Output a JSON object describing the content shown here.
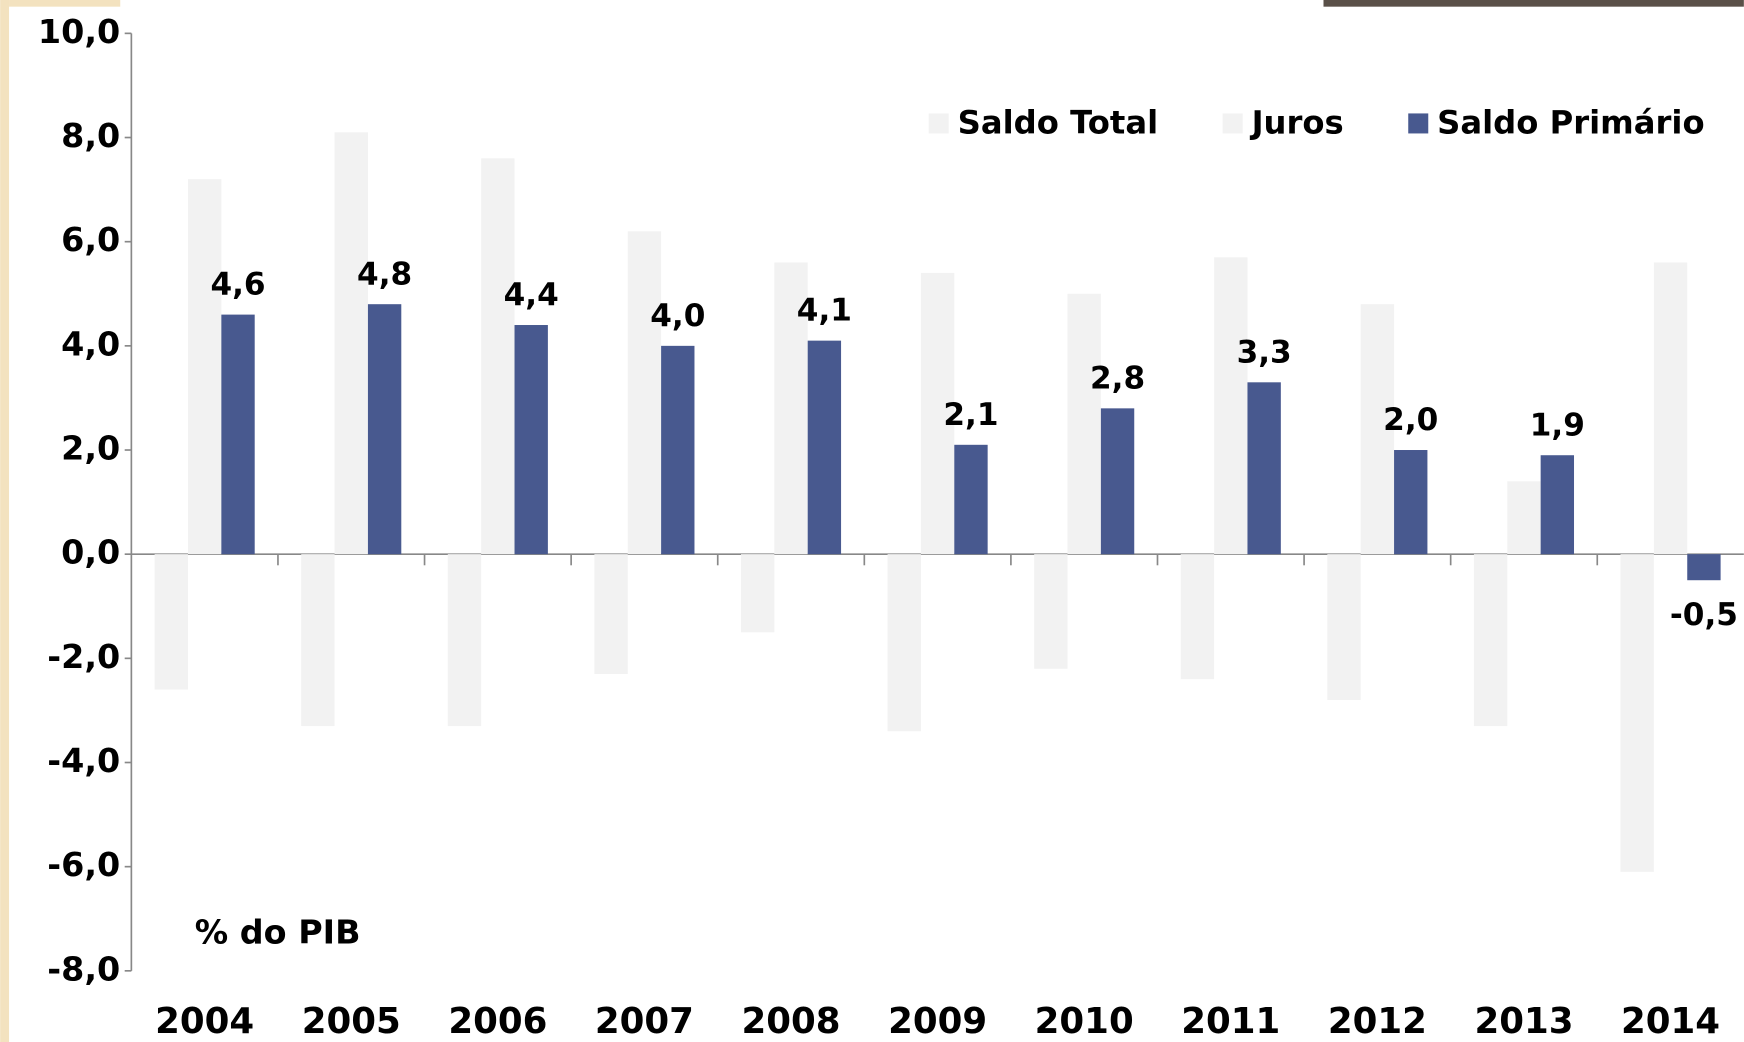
{
  "chart_data": {
    "type": "bar",
    "annotation": "% do PIB",
    "categories": [
      "2004",
      "2005",
      "2006",
      "2007",
      "2008",
      "2009",
      "2010",
      "2011",
      "2012",
      "2013",
      "2014"
    ],
    "series": [
      {
        "name": "Saldo Total",
        "color": "#f2f2f2",
        "values": [
          -2.6,
          -3.3,
          -3.3,
          -2.3,
          -1.5,
          -3.4,
          -2.2,
          -2.4,
          -2.8,
          -3.3,
          -6.1
        ]
      },
      {
        "name": "Juros",
        "color": "#f2f2f2",
        "values": [
          7.2,
          8.1,
          7.6,
          6.2,
          5.6,
          5.4,
          5.0,
          5.7,
          4.8,
          1.4,
          5.6
        ]
      },
      {
        "name": "Saldo Primário",
        "color": "#48598f",
        "values": [
          4.6,
          4.8,
          4.4,
          4.0,
          4.1,
          2.1,
          2.8,
          3.3,
          2.0,
          1.9,
          -0.5
        ],
        "value_labels": [
          "4,6",
          "4,8",
          "4,4",
          "4,0",
          "4,1",
          "2,1",
          "2,8",
          "3,3",
          "2,0",
          "1,9",
          "-0,5"
        ]
      }
    ],
    "ylim": [
      -8,
      10
    ],
    "yticks": [
      {
        "value": -8,
        "label": "-8,0"
      },
      {
        "value": -6,
        "label": "-6,0"
      },
      {
        "value": -4,
        "label": "-4,0"
      },
      {
        "value": -2,
        "label": "-2,0"
      },
      {
        "value": 0,
        "label": "0,0"
      },
      {
        "value": 2,
        "label": "2,0"
      },
      {
        "value": 4,
        "label": "4,0"
      },
      {
        "value": 6,
        "label": "6,0"
      },
      {
        "value": 8,
        "label": "8,0"
      },
      {
        "value": 10,
        "label": "10,0"
      }
    ],
    "grid": false,
    "legend": "top-right"
  }
}
